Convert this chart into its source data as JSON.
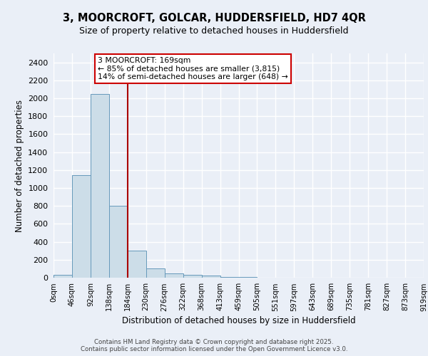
{
  "title_line1": "3, MOORCROFT, GOLCAR, HUDDERSFIELD, HD7 4QR",
  "title_line2": "Size of property relative to detached houses in Huddersfield",
  "xlabel": "Distribution of detached houses by size in Huddersfield",
  "ylabel": "Number of detached properties",
  "bin_labels": [
    "0sqm",
    "46sqm",
    "92sqm",
    "138sqm",
    "184sqm",
    "230sqm",
    "276sqm",
    "322sqm",
    "368sqm",
    "413sqm",
    "459sqm",
    "505sqm",
    "551sqm",
    "597sqm",
    "643sqm",
    "689sqm",
    "735sqm",
    "781sqm",
    "827sqm",
    "873sqm",
    "919sqm"
  ],
  "bar_heights": [
    30,
    1140,
    2050,
    800,
    300,
    100,
    45,
    35,
    20,
    10,
    5,
    0,
    0,
    0,
    0,
    0,
    0,
    0,
    0,
    0
  ],
  "bar_color": "#ccdde8",
  "bar_edge_color": "#6699bb",
  "property_line_x": 4,
  "property_line_color": "#aa0000",
  "annotation_text": "3 MOORCROFT: 169sqm\n← 85% of detached houses are smaller (3,815)\n14% of semi-detached houses are larger (648) →",
  "annotation_box_color": "white",
  "annotation_box_edge_color": "#cc0000",
  "ylim": [
    0,
    2500
  ],
  "yticks": [
    0,
    200,
    400,
    600,
    800,
    1000,
    1200,
    1400,
    1600,
    1800,
    2000,
    2200,
    2400
  ],
  "bg_color": "#eaeff7",
  "plot_bg_color": "#eaeff7",
  "grid_color": "white",
  "footer_line1": "Contains HM Land Registry data © Crown copyright and database right 2025.",
  "footer_line2": "Contains public sector information licensed under the Open Government Licence v3.0.",
  "bin_width": 1
}
